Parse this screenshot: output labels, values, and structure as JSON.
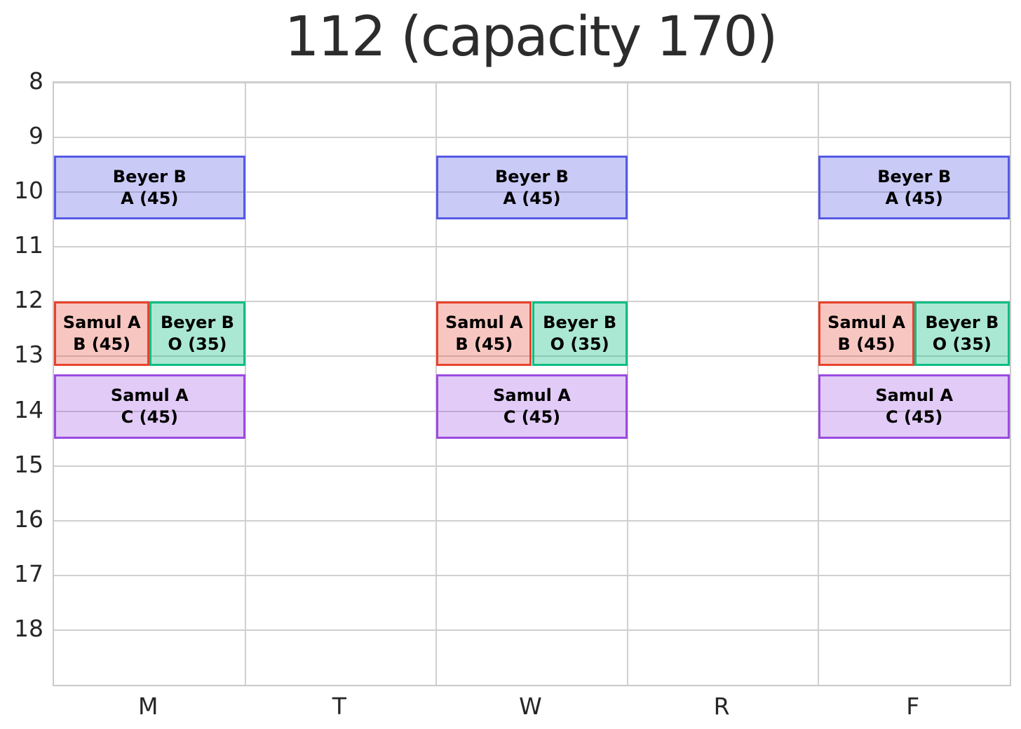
{
  "title": "112 (capacity 170)",
  "room": "112",
  "capacity": 170,
  "chart_data": {
    "type": "bar",
    "variant": "weekly-schedule-timetable",
    "title": "112 (capacity 170)",
    "xlabel": "",
    "ylabel": "",
    "x_categories": [
      "M",
      "T",
      "W",
      "R",
      "F"
    ],
    "y_ticks": [
      8,
      9,
      10,
      11,
      12,
      13,
      14,
      15,
      16,
      17,
      18
    ],
    "ylim": [
      8,
      19
    ],
    "grid": true,
    "grid_color": "#d0d0d0",
    "background_color": "#ffffff",
    "events": [
      {
        "name": "Beyer B",
        "section": "A",
        "enrollment": 45,
        "label_lines": [
          "Beyer B",
          "A (45)"
        ],
        "days": [
          "M",
          "W",
          "F"
        ],
        "start_hour": 9.33,
        "end_hour": 10.5,
        "x_span": "full",
        "fill": "rgba(86,89,228,0.32)",
        "fill_hex_apparent": "#ccccf7",
        "border": "#565ae4"
      },
      {
        "name": "Samul A",
        "section": "B",
        "enrollment": 45,
        "label_lines": [
          "Samul A",
          "B (45)"
        ],
        "days": [
          "M",
          "W",
          "F"
        ],
        "start_hour": 12.0,
        "end_hour": 13.17,
        "x_span": "left-half",
        "fill": "rgba(232,67,45,0.30)",
        "fill_hex_apparent": "#f7c6ba",
        "border": "#e8432d"
      },
      {
        "name": "Beyer B",
        "section": "O",
        "enrollment": 35,
        "label_lines": [
          "Beyer B",
          "O (35)"
        ],
        "days": [
          "M",
          "W",
          "F"
        ],
        "start_hour": 12.0,
        "end_hour": 13.17,
        "x_span": "right-half",
        "fill": "rgba(13,189,131,0.35)",
        "fill_hex_apparent": "#aceace",
        "border": "#0dbd83"
      },
      {
        "name": "Samul A",
        "section": "C",
        "enrollment": 45,
        "label_lines": [
          "Samul A",
          "C (45)"
        ],
        "days": [
          "M",
          "W",
          "F"
        ],
        "start_hour": 13.33,
        "end_hour": 14.5,
        "x_span": "full",
        "fill": "rgba(155,75,224,0.29)",
        "fill_hex_apparent": "#e4cdf8",
        "border": "#9b4be0"
      }
    ]
  }
}
